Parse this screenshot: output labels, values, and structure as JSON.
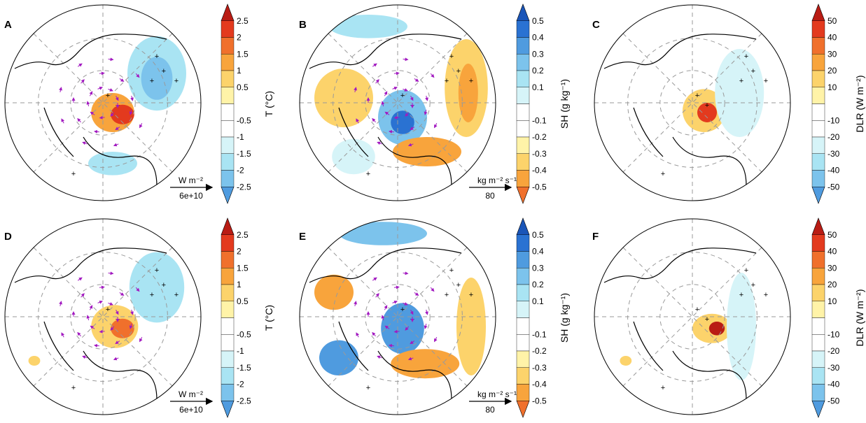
{
  "colors": {
    "warm": [
      "#fff3a8",
      "#fcd36b",
      "#f8a43c",
      "#f0702c",
      "#e33a1e",
      "#b91c14"
    ],
    "cool": [
      "#d6f4f8",
      "#a9e4f3",
      "#7cc3ec",
      "#4f9bdf",
      "#2a72d2",
      "#1a55b8"
    ],
    "white": "#ffffff",
    "vector": "#a21ac0",
    "coast": "#000000",
    "grid": "#9a9a9a"
  },
  "colorbars": {
    "T": {
      "label": "T (°C)",
      "ticks": [
        "2.5",
        "2",
        "1.5",
        "1",
        "0.5",
        "-0.5",
        "-1",
        "-1.5",
        "-2",
        "-2.5"
      ],
      "direction": "warm-top"
    },
    "SH": {
      "label": "SH (g kg⁻¹)",
      "ticks": [
        "0.5",
        "0.4",
        "0.3",
        "0.2",
        "0.1",
        "-0.1",
        "-0.2",
        "-0.3",
        "-0.4",
        "-0.5"
      ],
      "direction": "cool-top"
    },
    "DLR": {
      "label": "DLR (W m⁻²)",
      "ticks": [
        "50",
        "40",
        "30",
        "20",
        "10",
        "-10",
        "-20",
        "-30",
        "-40",
        "-50"
      ],
      "direction": "warm-top"
    }
  },
  "reference_vectors": {
    "T": {
      "unit": "W m⁻²",
      "value": "6e+10"
    },
    "SH": {
      "unit": "kg m⁻² s⁻¹",
      "value": "80"
    }
  },
  "chart_data": [
    {
      "type": "heatmap",
      "panel": "A",
      "variable": "T",
      "projection": "north polar stereographic",
      "colorbar": "T"
    },
    {
      "type": "heatmap",
      "panel": "B",
      "variable": "SH",
      "projection": "north polar stereographic",
      "colorbar": "SH"
    },
    {
      "type": "heatmap",
      "panel": "C",
      "variable": "DLR",
      "projection": "north polar stereographic",
      "colorbar": "DLR"
    },
    {
      "type": "heatmap",
      "panel": "D",
      "variable": "T",
      "projection": "north polar stereographic",
      "colorbar": "T"
    },
    {
      "type": "heatmap",
      "panel": "E",
      "variable": "SH",
      "projection": "north polar stereographic",
      "colorbar": "SH"
    },
    {
      "type": "heatmap",
      "panel": "F",
      "variable": "DLR",
      "projection": "north polar stereographic",
      "colorbar": "DLR"
    }
  ]
}
